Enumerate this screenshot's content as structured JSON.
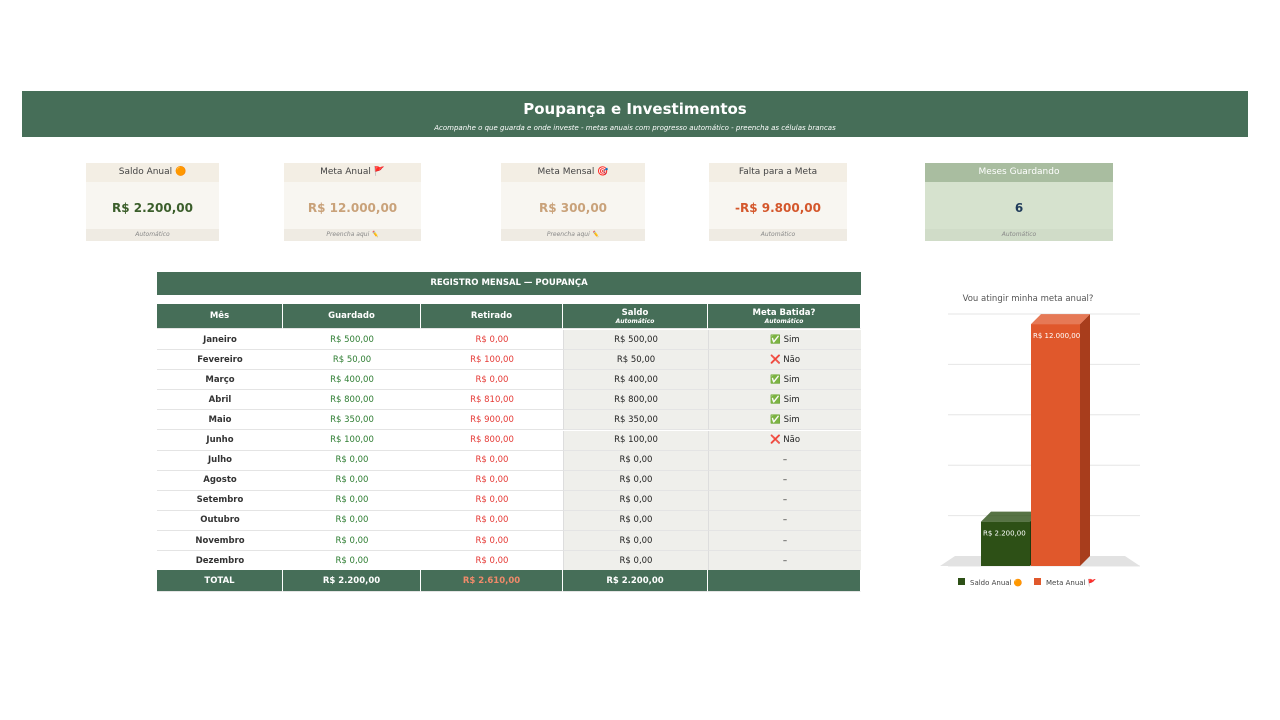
{
  "header": {
    "title": "Poupança e Investimentos",
    "subtitle": "Acompanhe o que guarda e onde investe - metas anuais com progresso automático - preencha as células brancas"
  },
  "cards": [
    {
      "label": "Saldo Anual 🟠",
      "value": "R$ 2.200,00",
      "note": "Automático"
    },
    {
      "label": "Meta Anual 🚩",
      "value": "R$ 12.000,00",
      "note": "Preencha aqui ✏️"
    },
    {
      "label": "Meta Mensal 🎯",
      "value": "R$ 300,00",
      "note": "Preencha aqui ✏️"
    },
    {
      "label": "Falta para a Meta",
      "value": "-R$ 9.800,00",
      "note": "Automático"
    },
    {
      "label": "Meses Guardando",
      "value": "6",
      "note": "Automático"
    }
  ],
  "table": {
    "title": "REGISTRO MENSAL — POUPANÇA",
    "headers": [
      "Mês",
      "Guardado",
      "Retirado",
      "Saldo",
      "Meta Batida?"
    ],
    "header_notes": {
      "3": "Automático",
      "4": "Automático"
    },
    "rows": [
      [
        "Janeiro",
        "R$ 500,00",
        "R$ 0,00",
        "R$ 500,00",
        "✅ Sim"
      ],
      [
        "Fevereiro",
        "R$ 50,00",
        "R$ 100,00",
        "R$ 50,00",
        "❌ Não"
      ],
      [
        "Março",
        "R$ 400,00",
        "R$ 0,00",
        "R$ 400,00",
        "✅ Sim"
      ],
      [
        "Abril",
        "R$ 800,00",
        "R$ 810,00",
        "R$ 800,00",
        "✅ Sim"
      ],
      [
        "Maio",
        "R$ 350,00",
        "R$ 900,00",
        "R$ 350,00",
        "✅ Sim"
      ],
      [
        "Junho",
        "R$ 100,00",
        "R$ 800,00",
        "R$ 100,00",
        "❌ Não"
      ],
      [
        "Julho",
        "R$ 0,00",
        "R$ 0,00",
        "R$ 0,00",
        "–"
      ],
      [
        "Agosto",
        "R$ 0,00",
        "R$ 0,00",
        "R$ 0,00",
        "–"
      ],
      [
        "Setembro",
        "R$ 0,00",
        "R$ 0,00",
        "R$ 0,00",
        "–"
      ],
      [
        "Outubro",
        "R$ 0,00",
        "R$ 0,00",
        "R$ 0,00",
        "–"
      ],
      [
        "Novembro",
        "R$ 0,00",
        "R$ 0,00",
        "R$ 0,00",
        "–"
      ],
      [
        "Dezembro",
        "R$ 0,00",
        "R$ 0,00",
        "R$ 0,00",
        "–"
      ]
    ],
    "total": [
      "TOTAL",
      "R$ 2.200,00",
      "R$ 2.610,00",
      "R$ 2.200,00"
    ]
  },
  "chart_data": {
    "type": "bar",
    "title": "Vou atingir minha meta anual?",
    "series": [
      {
        "name": "Saldo Anual 🟠",
        "color": "#2d5016",
        "values": [
          2200
        ],
        "value_labels": [
          "R$ 2.200,00"
        ]
      },
      {
        "name": "Meta Anual 🚩",
        "color": "#e0582c",
        "values": [
          12000
        ],
        "value_labels": [
          "R$ 12.000,00"
        ]
      }
    ],
    "ylim": [
      0,
      12500
    ],
    "yticks": [
      0,
      2500,
      5000,
      7500,
      10000,
      12500
    ],
    "grid": true
  }
}
